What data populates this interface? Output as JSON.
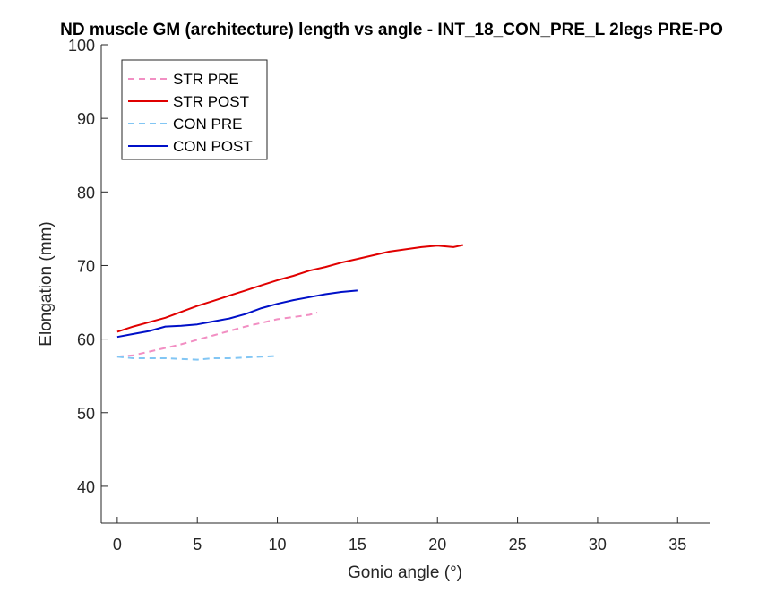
{
  "chart_data": {
    "type": "line",
    "title": "ND muscle GM (architecture) length vs angle - INT_18_CON_PRE_L 2legs PRE-PO",
    "xlabel": "Gonio angle (°)",
    "ylabel": "Elongation (mm)",
    "xlim": [
      -1,
      37
    ],
    "ylim": [
      35,
      100
    ],
    "xticks": [
      0,
      5,
      10,
      15,
      20,
      25,
      30,
      35
    ],
    "yticks": [
      40,
      50,
      60,
      70,
      80,
      90,
      100
    ],
    "grid": false,
    "legend_position": "top-left",
    "series": [
      {
        "name": "STR PRE",
        "color": "#f28fc3",
        "dash": "dashed",
        "x": [
          0,
          1,
          2,
          3,
          4,
          5,
          6,
          7,
          8,
          9,
          10,
          11,
          12,
          12.5
        ],
        "y": [
          57.6,
          57.8,
          58.3,
          58.8,
          59.3,
          59.9,
          60.5,
          61.1,
          61.7,
          62.2,
          62.7,
          63.0,
          63.3,
          63.6
        ]
      },
      {
        "name": "STR POST",
        "color": "#e00000",
        "dash": "solid",
        "x": [
          0,
          1,
          2,
          3,
          4,
          5,
          6,
          7,
          8,
          9,
          10,
          11,
          12,
          13,
          14,
          15,
          16,
          17,
          18,
          19,
          20,
          21,
          21.6
        ],
        "y": [
          61.0,
          61.7,
          62.3,
          62.9,
          63.7,
          64.5,
          65.2,
          65.9,
          66.6,
          67.3,
          68.0,
          68.6,
          69.3,
          69.8,
          70.4,
          70.9,
          71.4,
          71.9,
          72.2,
          72.5,
          72.7,
          72.5,
          72.8
        ]
      },
      {
        "name": "CON PRE",
        "color": "#82c6f4",
        "dash": "dashed",
        "x": [
          0,
          1,
          2,
          3,
          4,
          5,
          6,
          7,
          8,
          9,
          10
        ],
        "y": [
          57.6,
          57.4,
          57.4,
          57.4,
          57.3,
          57.2,
          57.4,
          57.4,
          57.5,
          57.6,
          57.7
        ]
      },
      {
        "name": "CON POST",
        "color": "#0010c8",
        "dash": "solid",
        "x": [
          0,
          1,
          2,
          3,
          4,
          5,
          6,
          7,
          8,
          9,
          10,
          11,
          12,
          13,
          14,
          15
        ],
        "y": [
          60.3,
          60.7,
          61.1,
          61.7,
          61.8,
          62.0,
          62.4,
          62.8,
          63.4,
          64.2,
          64.8,
          65.3,
          65.7,
          66.1,
          66.4,
          66.6
        ]
      }
    ]
  }
}
